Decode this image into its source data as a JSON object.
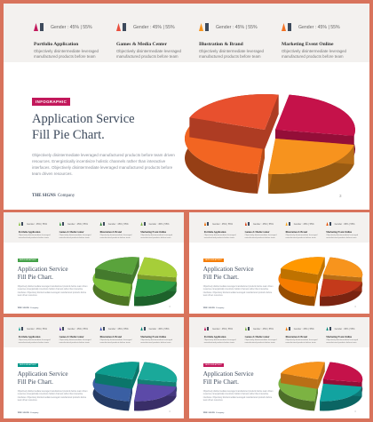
{
  "columns": [
    {
      "gender": "Gender : 45% | 55%",
      "title": "Portfolio Application",
      "desc": "Objectively disintermediate leveraged manufactured products before team"
    },
    {
      "gender": "Gender : 45% | 55%",
      "title": "Games & Media Center",
      "desc": "Objectively disintermediate leveraged manufactured products before team"
    },
    {
      "gender": "Gender : 45% | 55%",
      "title": "Illustration & Brand",
      "desc": "Objectively disintermediate leveraged manufactured products before team"
    },
    {
      "gender": "Gender : 45% | 55%",
      "title": "Marketing Event Online",
      "desc": "Objectively disintermediate leveraged manufactured products before team"
    }
  ],
  "badge": "INFOGRAPHIC",
  "title_line1": "Application Service",
  "title_line2": "Fill Pie Chart.",
  "body": "Objectively disintermediate leveraged manufactured products before team driven resources. Energistically incentivize holistic channels rather than interactive interfaces. Objectively disintermediate leveraged manufactured products before team driven resources.",
  "footer_brand": "THE SIGNS",
  "footer_suffix": "Company",
  "page": "3",
  "slides": [
    {
      "badge_color": "#c2185b",
      "figure_colors": [
        "#c2185b",
        "#e94e3c",
        "#f7941d",
        "#f37021"
      ],
      "pie": [
        "#c5124a",
        "#f7931e",
        "#f26522",
        "#e8502e"
      ]
    },
    {
      "badge_color": "#43a047",
      "figure_colors": [
        "#8bc34a",
        "#43a047",
        "#2e7d32",
        "#7cb342"
      ],
      "pie": [
        "#a6ce39",
        "#2e9e46",
        "#7cbf3a",
        "#5aa33c"
      ]
    },
    {
      "badge_color": "#f57c00",
      "figure_colors": [
        "#ef6c00",
        "#d84315",
        "#f9a825",
        "#e65100"
      ],
      "pie": [
        "#f7941d",
        "#c43a1b",
        "#f57c00",
        "#ff9800"
      ]
    },
    {
      "badge_color": "#009688",
      "figure_colors": [
        "#26a69a",
        "#5e35b1",
        "#3f51b5",
        "#00897b"
      ],
      "pie": [
        "#1aa99a",
        "#5c4aa8",
        "#3a5fa3",
        "#0f9d8f"
      ]
    },
    {
      "badge_color": "#c2185b",
      "figure_colors": [
        "#c2185b",
        "#7cb342",
        "#f57c00",
        "#00897b"
      ],
      "pie": [
        "#c5124a",
        "#12a3a0",
        "#7cb342",
        "#f7941d"
      ]
    }
  ]
}
